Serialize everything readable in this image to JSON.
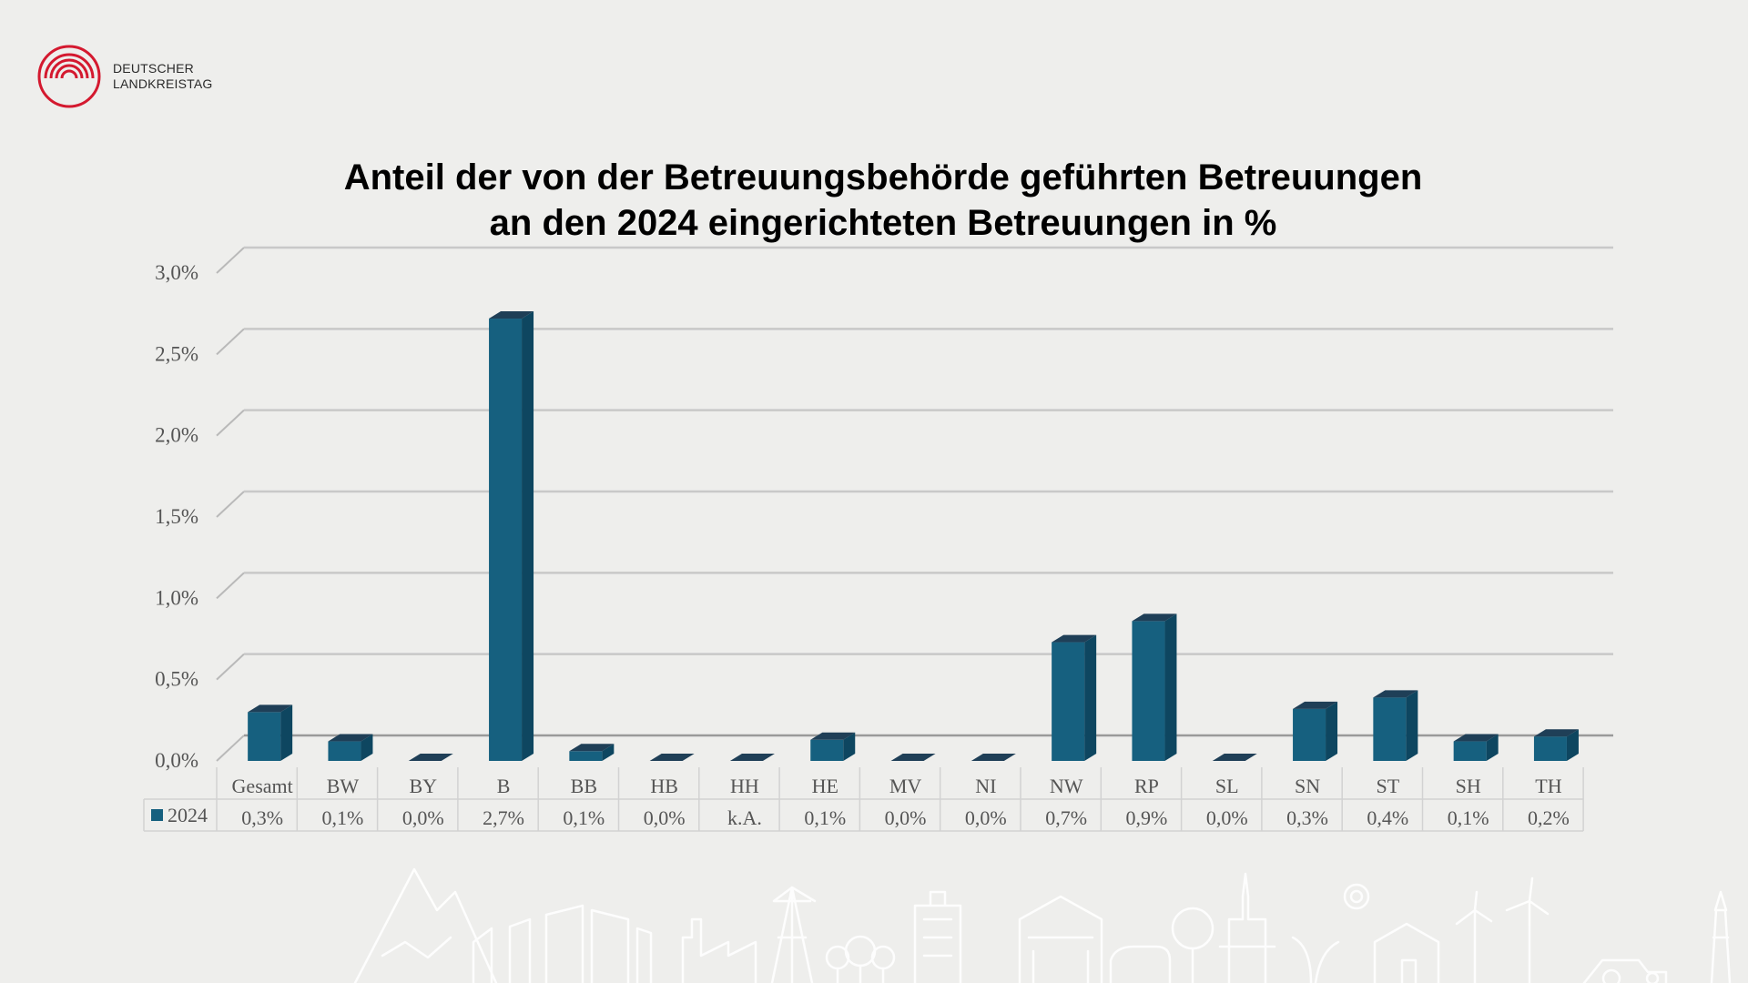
{
  "logo": {
    "line1": "DEUTSCHER",
    "line2": "LANDKREISTAG",
    "icon": "arch-rings-logo"
  },
  "colors": {
    "bar": "#16607f",
    "bar_side": "#0e4660",
    "bar_top": "#1f3f57",
    "brand_red": "#d4192f"
  },
  "chart_data": {
    "type": "bar",
    "title": [
      "Anteil der von der Betreuungsbehörde geführten Betreuungen",
      "an den 2024 eingerichteten Betreuungen in %"
    ],
    "categories": [
      "Gesamt",
      "BW",
      "BY",
      "B",
      "BB",
      "HB",
      "HH",
      "HE",
      "MV",
      "NI",
      "NW",
      "RP",
      "SL",
      "SN",
      "ST",
      "SH",
      "TH"
    ],
    "series": [
      {
        "name": "2024",
        "values": [
          0.3,
          0.12,
          0.0,
          2.72,
          0.06,
          0.0,
          0.0,
          0.13,
          0.0,
          0.0,
          0.73,
          0.86,
          0.0,
          0.32,
          0.39,
          0.12,
          0.15
        ],
        "labels": [
          "0,3%",
          "0,1%",
          "0,0%",
          "2,7%",
          "0,1%",
          "0,0%",
          "k.A.",
          "0,1%",
          "0,0%",
          "0,0%",
          "0,7%",
          "0,9%",
          "0,0%",
          "0,3%",
          "0,4%",
          "0,1%",
          "0,2%"
        ]
      }
    ],
    "yticks": [
      "0,0%",
      "0,5%",
      "1,0%",
      "1,5%",
      "2,0%",
      "2,5%",
      "3,0%"
    ],
    "ylim": [
      0,
      3.0
    ],
    "grid": true,
    "legend": "data-table-left"
  }
}
